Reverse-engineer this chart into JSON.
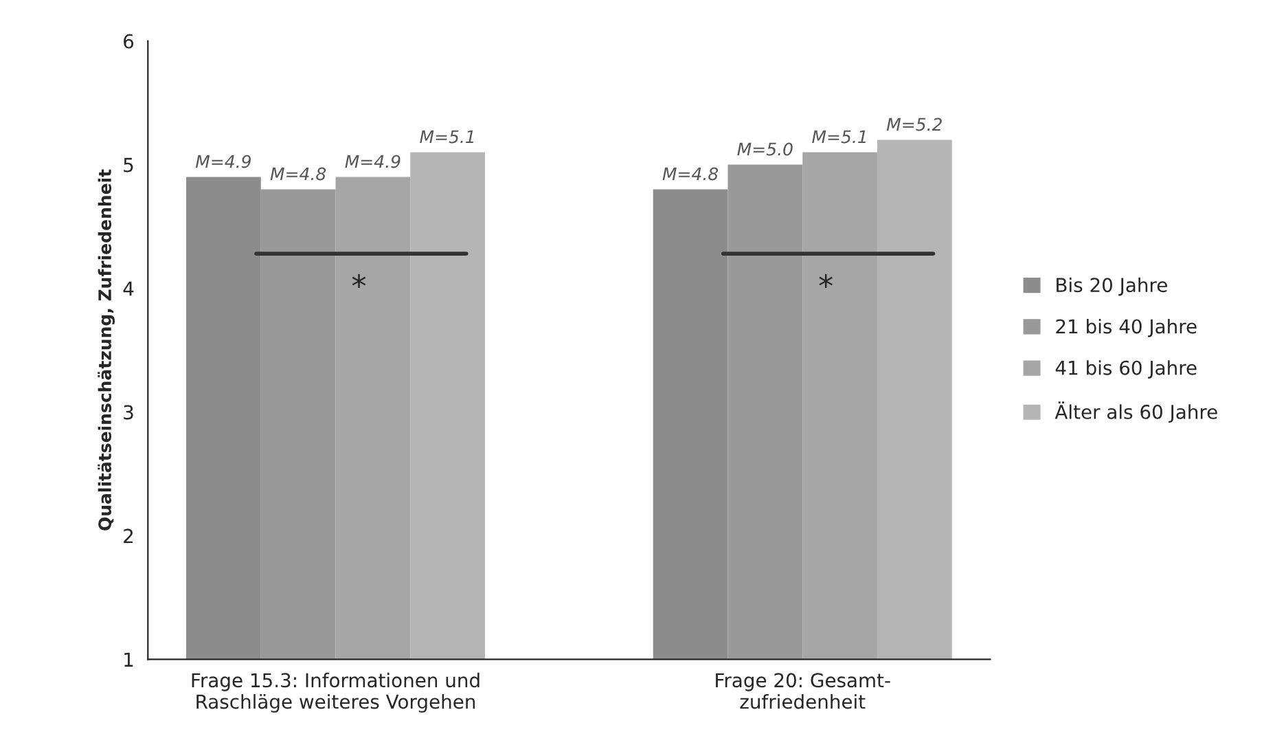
{
  "chart_data": {
    "type": "bar",
    "ylabel": "Qualitätseinschätzung, Zufriedenheit",
    "categories": [
      "Frage 15.3: Informationen und\nRaschläge weiteres Vorgehen",
      "Frage 20: Gesamt-\nzufriedenheit"
    ],
    "series": [
      {
        "name": "Bis 20 Jahre",
        "color": "#8c8c8c",
        "values": [
          4.9,
          4.8
        ],
        "value_labels": [
          "M=4.9",
          "M=4.8"
        ]
      },
      {
        "name": "21 bis 40 Jahre",
        "color": "#999999",
        "values": [
          4.8,
          5.0
        ],
        "value_labels": [
          "M=4.8",
          "M=5.0"
        ]
      },
      {
        "name": "41 bis 60 Jahre",
        "color": "#a6a6a6",
        "values": [
          4.9,
          5.1
        ],
        "value_labels": [
          "M=4.9",
          "M=5.1"
        ]
      },
      {
        "name": "Älter als 60 Jahre",
        "color": "#b5b5b5",
        "values": [
          5.1,
          5.2
        ],
        "value_labels": [
          "M=5.1",
          "M=5.2"
        ]
      }
    ],
    "ylim": [
      1,
      6
    ],
    "yticks": [
      1,
      2,
      3,
      4,
      5,
      6
    ],
    "grid": false,
    "legend": "right",
    "annotations": [
      {
        "text": "*",
        "x": "Frage 15.3: Informationen und\nRaschläge weiteres Vorgehen",
        "y": 4.0
      },
      {
        "text": "*",
        "x": "Frage 20: Gesamt-\nzufriedenheit",
        "y": 4.0
      }
    ]
  }
}
